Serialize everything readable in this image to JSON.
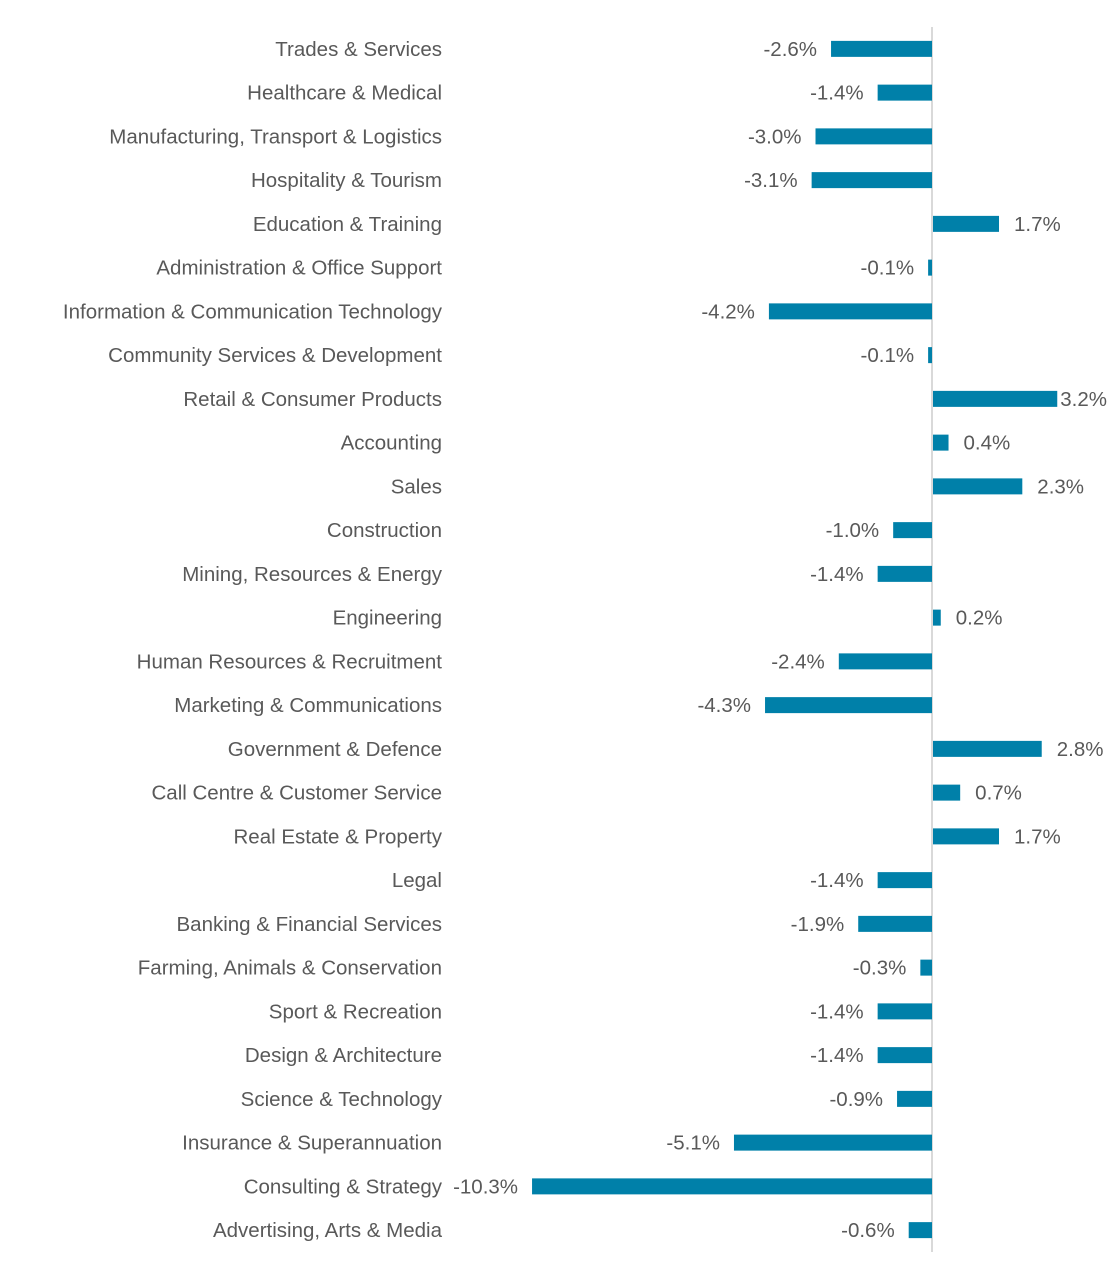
{
  "chart_data": {
    "type": "bar",
    "orientation": "horizontal",
    "title": "",
    "xlabel": "",
    "ylabel": "",
    "value_format": "percent_1dp",
    "bar_color": "#0080a9",
    "axis_color": "#d9d9d9",
    "label_color": "#595959",
    "grid": false,
    "legend": "none",
    "xlim": [
      -10.3,
      4.5
    ],
    "categories": [
      "Trades & Services",
      "Healthcare & Medical",
      "Manufacturing, Transport & Logistics",
      "Hospitality & Tourism",
      "Education & Training",
      "Administration & Office Support",
      "Information & Communication Technology",
      "Community Services & Development",
      "Retail & Consumer Products",
      "Accounting",
      "Sales",
      "Construction",
      "Mining, Resources & Energy",
      "Engineering",
      "Human Resources & Recruitment",
      "Marketing & Communications",
      "Government & Defence",
      "Call Centre & Customer Service",
      "Real Estate & Property",
      "Legal",
      "Banking & Financial Services",
      "Farming, Animals & Conservation",
      "Sport & Recreation",
      "Design & Architecture",
      "Science & Technology",
      "Insurance & Superannuation",
      "Consulting & Strategy",
      "Advertising, Arts & Media"
    ],
    "values": [
      -2.6,
      -1.4,
      -3.0,
      -3.1,
      1.7,
      -0.1,
      -4.2,
      -0.1,
      3.2,
      0.4,
      2.3,
      -1.0,
      -1.4,
      0.2,
      -2.4,
      -4.3,
      2.8,
      0.7,
      1.7,
      -1.4,
      -1.9,
      -0.3,
      -1.4,
      -1.4,
      -0.9,
      -5.1,
      -10.3,
      -0.6
    ],
    "data_labels": [
      "-2.6%",
      "-1.4%",
      "-3.0%",
      "-3.1%",
      "1.7%",
      "-0.1%",
      "-4.2%",
      "-0.1%",
      "3.2%",
      "0.4%",
      "2.3%",
      "-1.0%",
      "-1.4%",
      "0.2%",
      "-2.4%",
      "-4.3%",
      "2.8%",
      "0.7%",
      "1.7%",
      "-1.4%",
      "-1.9%",
      "-0.3%",
      "-1.4%",
      "-1.4%",
      "-0.9%",
      "-5.1%",
      "-10.3%",
      "-0.6%"
    ]
  }
}
